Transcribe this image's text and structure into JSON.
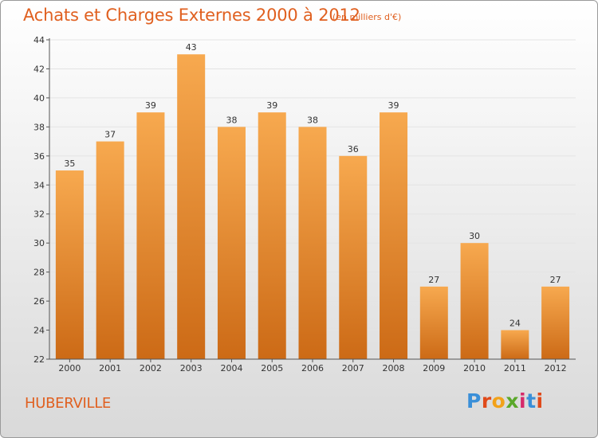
{
  "header": {
    "title": "Achats et Charges Externes 2000 à 2012",
    "subtitle": "(en milliers d'€)"
  },
  "commune": "HUBERVILLE",
  "logo": {
    "text": "Proxiti",
    "colors": [
      "#3a8fd8",
      "#e04a1a",
      "#f2a21a",
      "#5aa82a",
      "#d62a6a",
      "#3a8fd8",
      "#e04a1a"
    ]
  },
  "colors": {
    "bar_light": "#f7a94f",
    "bar_dark": "#cc6a16",
    "accent": "#e06020"
  },
  "chart_data": {
    "type": "bar",
    "categories": [
      "2000",
      "2001",
      "2002",
      "2003",
      "2004",
      "2005",
      "2006",
      "2007",
      "2008",
      "2009",
      "2010",
      "2011",
      "2012"
    ],
    "values": [
      35,
      37,
      39,
      43,
      38,
      39,
      38,
      36,
      39,
      27,
      30,
      24,
      27
    ],
    "title": "Achats et Charges Externes 2000 à 2012",
    "subtitle": "(en milliers d'€)",
    "xlabel": "",
    "ylabel": "",
    "ylim": [
      22,
      44
    ],
    "yticks": [
      22,
      24,
      26,
      28,
      30,
      32,
      34,
      36,
      38,
      40,
      42,
      44
    ],
    "grid": true,
    "data_labels": true
  }
}
